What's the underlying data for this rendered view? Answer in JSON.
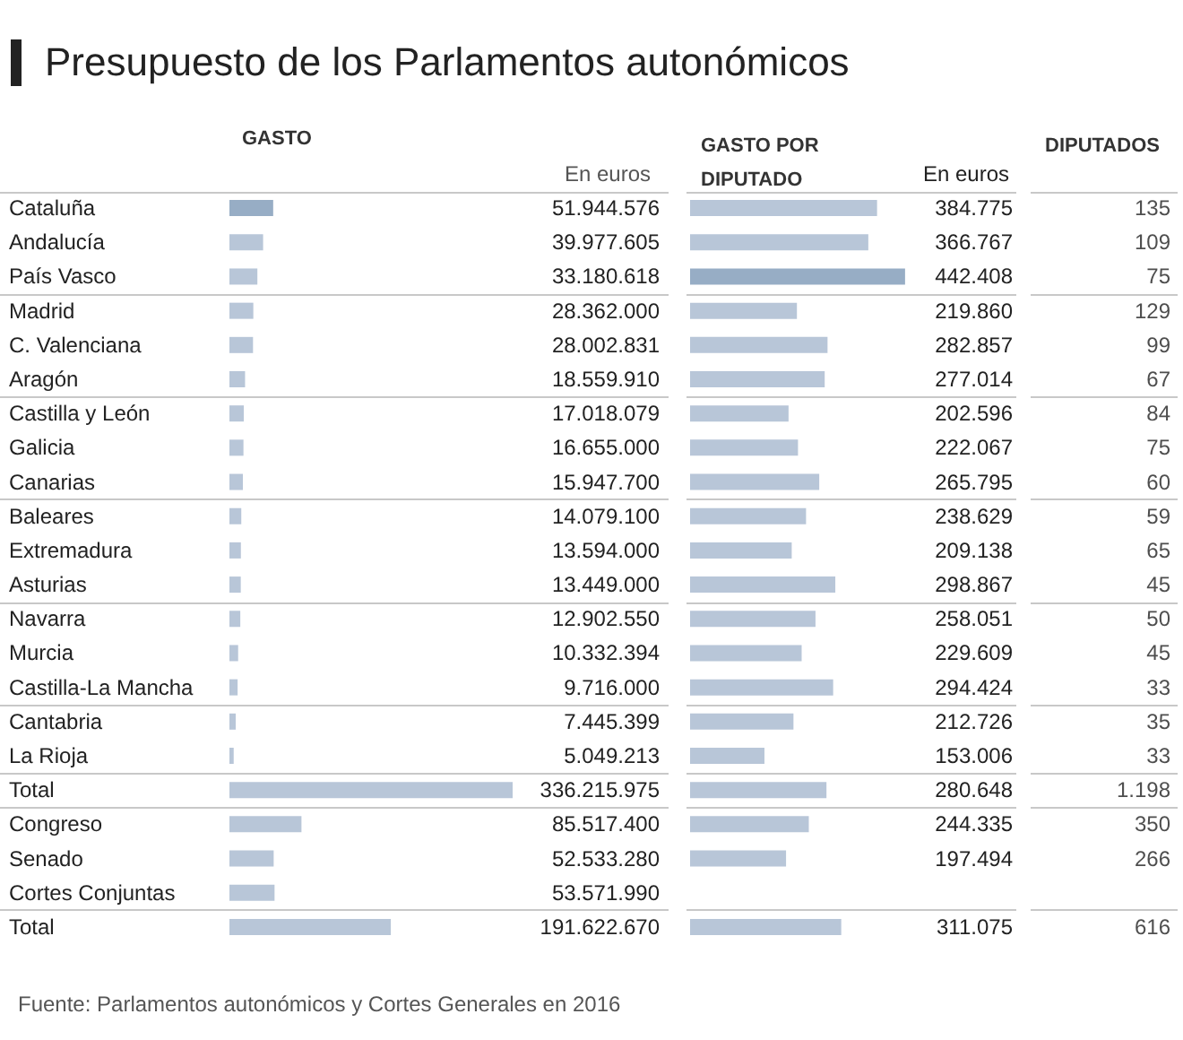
{
  "chart_data": [
    {
      "type": "bar",
      "orientation": "horizontal",
      "title": "Presupuesto de los Parlamentos autonómicos",
      "xlabel": "GASTO",
      "categories": [
        "Cataluña",
        "Andalucía",
        "País Vasco",
        "Madrid",
        "C. Valenciana",
        "Aragón",
        "Castilla y León",
        "Galicia",
        "Canarias",
        "Baleares",
        "Extremadura",
        "Asturias",
        "Navarra",
        "Murcia",
        "Castilla-La Mancha",
        "Cantabria",
        "La Rioja",
        "Total",
        "Congreso",
        "Senado",
        "Cortes Conjuntas",
        "Total"
      ],
      "values": [
        51944576,
        39977605,
        33180618,
        28362000,
        28002831,
        18559910,
        17018079,
        16655000,
        15947700,
        14079100,
        13594000,
        13449000,
        12902550,
        10332394,
        9716000,
        7445399,
        5049213,
        336215975,
        85517400,
        52533280,
        53571990,
        191622670
      ],
      "value_labels": [
        "51.944.576",
        "39.977.605",
        "33.180.618",
        "28.362.000",
        "28.002.831",
        "18.559.910",
        "17.018.079",
        "16.655.000",
        "15.947.700",
        "14.079.100",
        "13.594.000",
        "13.449.000",
        "12.902.550",
        "10.332.394",
        "9.716.000",
        "7.445.399",
        "5.049.213",
        "336.215.975",
        "85.517.400",
        "52.533.280",
        "53.571.990",
        "191.622.670"
      ],
      "colors": [
        "#97adc5",
        "#b8c6d8",
        "#b8c6d8",
        "#b8c6d8",
        "#b8c6d8",
        "#b8c6d8",
        "#b8c6d8",
        "#b8c6d8",
        "#b8c6d8",
        "#b8c6d8",
        "#b8c6d8",
        "#b8c6d8",
        "#b8c6d8",
        "#b8c6d8",
        "#b8c6d8",
        "#b8c6d8",
        "#b8c6d8",
        "#b8c6d8",
        "#b8c6d8",
        "#b8c6d8",
        "#b8c6d8",
        "#b8c6d8"
      ],
      "annotations": [
        "En euros",
        "Fuente: Parlamentos autonómicos y Cortes Generales en 2016"
      ]
    },
    {
      "type": "bar",
      "orientation": "horizontal",
      "title": "GASTO POR\nDIPUTADO",
      "annotations": [
        "En euros"
      ],
      "categories": [
        null,
        null,
        null,
        null,
        null,
        null,
        null,
        null,
        null,
        null,
        null,
        null,
        null,
        null,
        null,
        null,
        null,
        null,
        null,
        null,
        null,
        null
      ],
      "values": [
        384775,
        366767,
        442408,
        219860,
        282857,
        277014,
        202596,
        222067,
        265795,
        238629,
        209138,
        298867,
        258051,
        229609,
        294424,
        212726,
        153006,
        280648,
        244335,
        197494,
        null,
        311075
      ],
      "value_labels": [
        "384.775",
        "366.767",
        "442.408",
        "219.860",
        "282.857",
        "277.014",
        "202.596",
        "222.067",
        "265.795",
        "238.629",
        "209.138",
        "298.867",
        "258.051",
        "229.609",
        "294.424",
        "212.726",
        "153.006",
        "280.648",
        "244.335",
        "197.494",
        null,
        "311.075"
      ],
      "colors": [
        "#b8c6d8",
        "#b8c6d8",
        "#97adc5",
        "#b8c6d8",
        "#b8c6d8",
        "#b8c6d8",
        "#b8c6d8",
        "#b8c6d8",
        "#b8c6d8",
        "#b8c6d8",
        "#b8c6d8",
        "#b8c6d8",
        "#b8c6d8",
        "#b8c6d8",
        "#b8c6d8",
        "#b8c6d8",
        "#b8c6d8",
        "#b8c6d8",
        "#b8c6d8",
        "#b8c6d8",
        "#b8c6d8",
        "#b8c6d8"
      ],
      "xlim": [
        0,
        450000
      ]
    },
    {
      "type": "other",
      "title": "DIPUTADOS",
      "values": [
        135,
        109,
        75,
        129,
        99,
        67,
        84,
        75,
        60,
        59,
        65,
        45,
        50,
        45,
        33,
        35,
        33,
        1198,
        350,
        266,
        null,
        616
      ],
      "value_labels": [
        "135",
        "109",
        "75",
        "129",
        "99",
        "67",
        "84",
        "75",
        "60",
        "59",
        "65",
        "45",
        "50",
        "45",
        "33",
        "35",
        "33",
        "1.198",
        "350",
        "266",
        null,
        "616"
      ]
    }
  ]
}
